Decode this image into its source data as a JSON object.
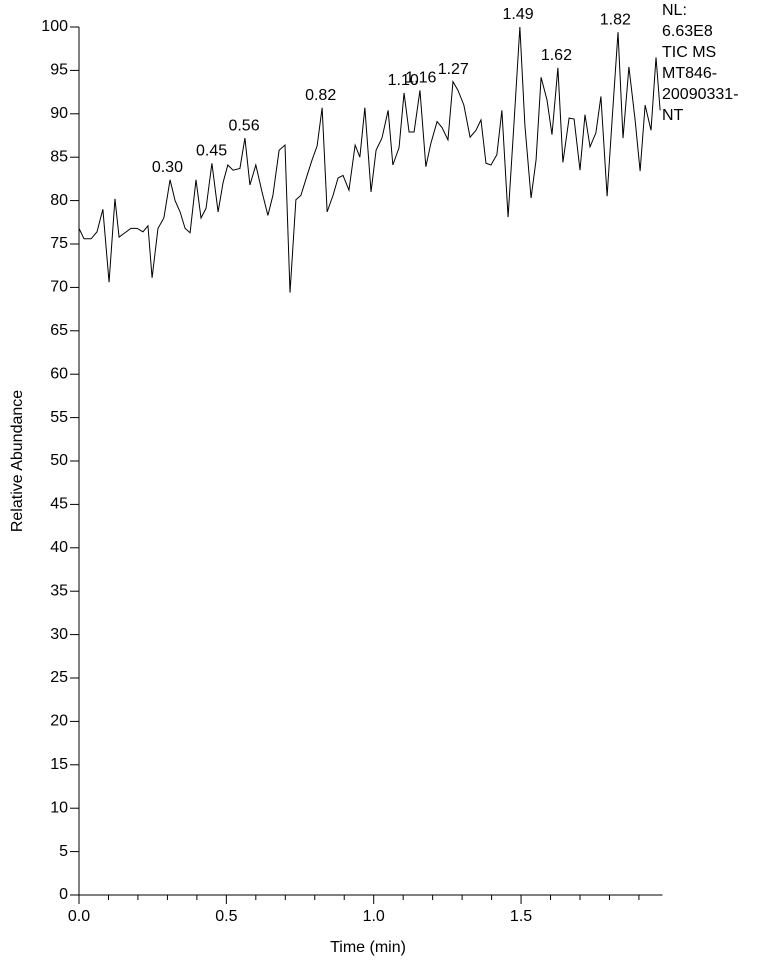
{
  "chart_data": {
    "type": "line",
    "xlabel": "Time (min)",
    "ylabel": "Relative Abundance",
    "annotation_lines": [
      "NL:",
      "6.63E8",
      "TIC  MS",
      "MT846-",
      "20090331-",
      "NT"
    ],
    "x": [
      0.0,
      0.017,
      0.041,
      0.061,
      0.081,
      0.102,
      0.122,
      0.136,
      0.156,
      0.176,
      0.197,
      0.217,
      0.234,
      0.248,
      0.268,
      0.288,
      0.309,
      0.326,
      0.343,
      0.36,
      0.377,
      0.397,
      0.414,
      0.431,
      0.451,
      0.472,
      0.489,
      0.505,
      0.523,
      0.546,
      0.563,
      0.58,
      0.6,
      0.621,
      0.641,
      0.658,
      0.679,
      0.699,
      0.716,
      0.736,
      0.753,
      0.774,
      0.791,
      0.808,
      0.825,
      0.842,
      0.862,
      0.879,
      0.896,
      0.916,
      0.937,
      0.953,
      0.97,
      0.991,
      1.008,
      1.028,
      1.049,
      1.065,
      1.086,
      1.103,
      1.12,
      1.137,
      1.157,
      1.177,
      1.194,
      1.215,
      1.232,
      1.252,
      1.269,
      1.286,
      1.306,
      1.327,
      1.347,
      1.364,
      1.381,
      1.398,
      1.418,
      1.435,
      1.456,
      1.476,
      1.496,
      1.513,
      1.534,
      1.551,
      1.568,
      1.588,
      1.605,
      1.625,
      1.642,
      1.663,
      1.68,
      1.7,
      1.717,
      1.734,
      1.754,
      1.771,
      1.792,
      1.809,
      1.829,
      1.846,
      1.866,
      1.887,
      1.904,
      1.921,
      1.941,
      1.958,
      1.972
    ],
    "series": [
      {
        "color": "#000000",
        "values": [
          76.8,
          75.6,
          75.6,
          76.4,
          79.0,
          70.6,
          80.2,
          75.8,
          76.3,
          76.8,
          76.8,
          76.4,
          77.1,
          71.1,
          76.8,
          78.0,
          82.4,
          80.0,
          78.7,
          76.8,
          76.3,
          82.4,
          78.0,
          79.1,
          84.3,
          78.7,
          82.1,
          84.1,
          83.5,
          83.7,
          87.2,
          81.8,
          84.1,
          81.0,
          78.3,
          80.6,
          85.8,
          86.4,
          69.4,
          80.1,
          80.6,
          82.9,
          84.7,
          86.3,
          90.7,
          78.7,
          80.6,
          82.6,
          82.9,
          81.2,
          86.4,
          85.0,
          90.7,
          81.0,
          85.8,
          87.2,
          90.4,
          84.1,
          86.1,
          92.4,
          87.9,
          87.9,
          92.7,
          83.9,
          86.6,
          89.1,
          88.4,
          87.0,
          93.7,
          92.7,
          91.0,
          87.3,
          88.1,
          89.3,
          84.3,
          84.1,
          85.3,
          90.4,
          78.1,
          88.9,
          100,
          88.7,
          80.3,
          84.7,
          94.2,
          91.6,
          87.6,
          95.3,
          84.4,
          89.5,
          89.4,
          83.5,
          89.9,
          86.2,
          87.8,
          92.0,
          80.5,
          89.3,
          99.4,
          87.2,
          95.4,
          89.3,
          83.4,
          91.0,
          88.1,
          96.5,
          90.4
        ]
      }
    ],
    "peaks": [
      {
        "value": 0.3,
        "label": "0.30"
      },
      {
        "value": 0.45,
        "label": "0.45"
      },
      {
        "value": 0.56,
        "label": "0.56"
      },
      {
        "value": 0.82,
        "label": "0.82"
      },
      {
        "value": 1.1,
        "label": "1.10"
      },
      {
        "value": 1.16,
        "label": "1.16"
      },
      {
        "value": 1.27,
        "label": "1.27"
      },
      {
        "value": 1.49,
        "label": "1.49"
      },
      {
        "value": 1.62,
        "label": "1.62"
      },
      {
        "value": 1.82,
        "label": "1.82"
      }
    ],
    "xlim": [
      0,
      1.98
    ],
    "ylim": [
      0,
      100
    ],
    "xticks": [
      {
        "value": 0,
        "label": "0.0"
      },
      0.5,
      {
        "value": 1,
        "label": "1.0"
      },
      1.5
    ],
    "xminorticks": [
      0.1,
      0.2,
      0.3,
      0.4,
      0.6,
      0.7,
      0.8,
      0.9,
      1.1,
      1.2,
      1.3,
      1.4,
      1.6,
      1.7,
      1.8,
      1.9
    ],
    "yticks": [
      0,
      5,
      10,
      15,
      20,
      25,
      30,
      35,
      40,
      45,
      50,
      55,
      60,
      65,
      70,
      75,
      80,
      85,
      90,
      95,
      100
    ]
  }
}
